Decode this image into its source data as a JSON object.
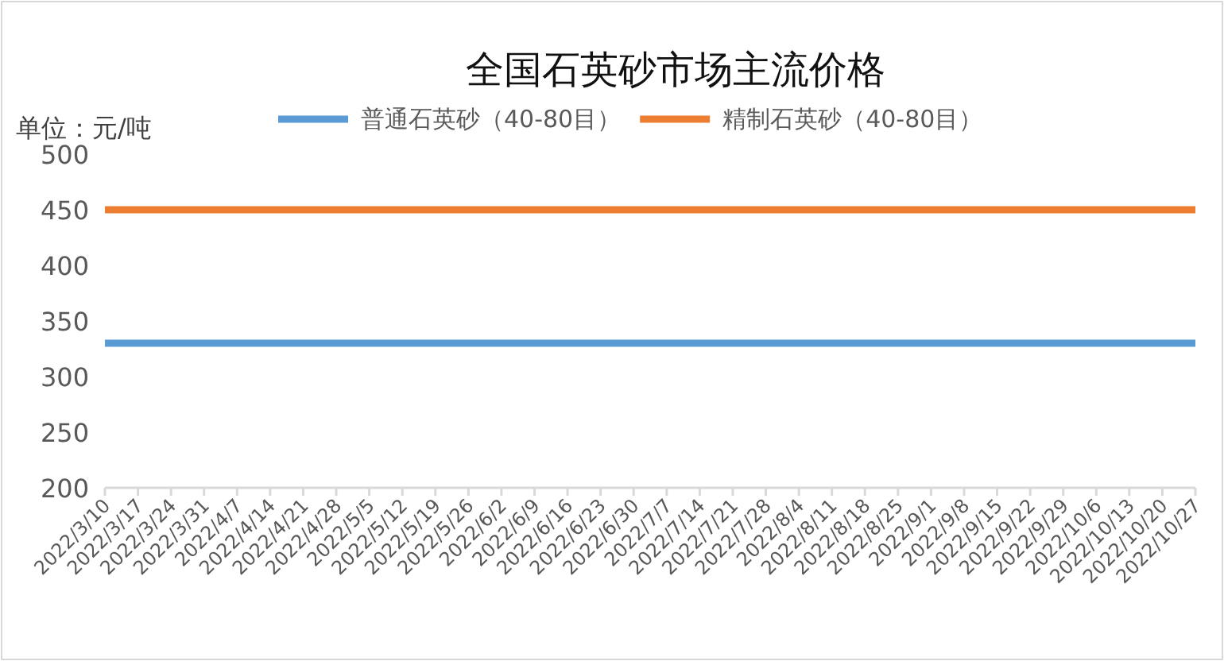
{
  "chart_data": {
    "type": "line",
    "title": "全国石英砂市场主流价格",
    "annotations": [
      "单位：元/吨"
    ],
    "categories": [
      "2022/3/10",
      "2022/3/17",
      "2022/3/24",
      "2022/3/31",
      "2022/4/7",
      "2022/4/14",
      "2022/4/21",
      "2022/4/28",
      "2022/5/5",
      "2022/5/12",
      "2022/5/19",
      "2022/5/26",
      "2022/6/2",
      "2022/6/9",
      "2022/6/16",
      "2022/6/23",
      "2022/6/30",
      "2022/7/7",
      "2022/7/14",
      "2022/7/21",
      "2022/7/28",
      "2022/8/4",
      "2022/8/11",
      "2022/8/18",
      "2022/8/25",
      "2022/9/1",
      "2022/9/8",
      "2022/9/15",
      "2022/9/22",
      "2022/9/29",
      "2022/10/6",
      "2022/10/13",
      "2022/10/20",
      "2022/10/27"
    ],
    "series": [
      {
        "name": "普通石英砂（40-80目）",
        "color": "#5b9bd5",
        "values": [
          330,
          330,
          330,
          330,
          330,
          330,
          330,
          330,
          330,
          330,
          330,
          330,
          330,
          330,
          330,
          330,
          330,
          330,
          330,
          330,
          330,
          330,
          330,
          330,
          330,
          330,
          330,
          330,
          330,
          330,
          330,
          330,
          330,
          330
        ]
      },
      {
        "name": "精制石英砂（40-80目）",
        "color": "#ed7d31",
        "values": [
          450,
          450,
          450,
          450,
          450,
          450,
          450,
          450,
          450,
          450,
          450,
          450,
          450,
          450,
          450,
          450,
          450,
          450,
          450,
          450,
          450,
          450,
          450,
          450,
          450,
          450,
          450,
          450,
          450,
          450,
          450,
          450,
          450,
          450
        ]
      }
    ],
    "ylim": [
      200,
      500
    ],
    "yticks": [
      200,
      250,
      300,
      350,
      400,
      450,
      500
    ],
    "grid": false,
    "legend": "top",
    "marker": "none",
    "line_style": "solid"
  }
}
